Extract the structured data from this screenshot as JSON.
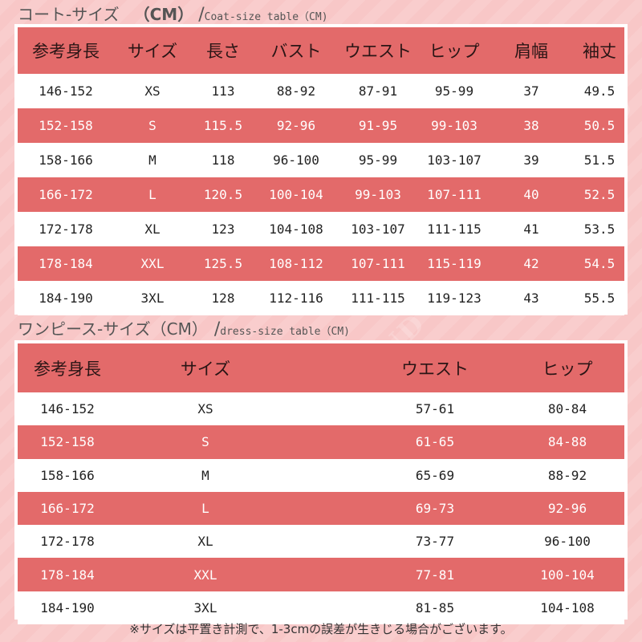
{
  "coat_heading": {
    "jp": "コート-サイズ",
    "cm": "（CM）",
    "slash": "/",
    "en": "Coat-size table（CM)"
  },
  "coat_table": {
    "headers": [
      "参考身長",
      "サイズ",
      "長さ",
      "バスト",
      "ウエスト",
      "ヒップ",
      "肩幅",
      "袖丈"
    ],
    "rows": [
      [
        "146-152",
        "XS",
        "113",
        "88-92",
        "87-91",
        "95-99",
        "37",
        "49.5"
      ],
      [
        "152-158",
        "S",
        "115.5",
        "92-96",
        "91-95",
        "99-103",
        "38",
        "50.5"
      ],
      [
        "158-166",
        "M",
        "118",
        "96-100",
        "95-99",
        "103-107",
        "39",
        "51.5"
      ],
      [
        "166-172",
        "L",
        "120.5",
        "100-104",
        "99-103",
        "107-111",
        "40",
        "52.5"
      ],
      [
        "172-178",
        "XL",
        "123",
        "104-108",
        "103-107",
        "111-115",
        "41",
        "53.5"
      ],
      [
        "178-184",
        "XXL",
        "125.5",
        "108-112",
        "107-111",
        "115-119",
        "42",
        "54.5"
      ],
      [
        "184-190",
        "3XL",
        "128",
        "112-116",
        "111-115",
        "119-123",
        "43",
        "55.5"
      ]
    ]
  },
  "dress_heading": {
    "jp": "ワンピース-サイズ（CM）",
    "slash": "/",
    "en": "dress-size table（CM)"
  },
  "dress_table": {
    "headers": [
      "参考身長",
      "サイズ",
      "ウエスト",
      "ヒップ"
    ],
    "rows": [
      [
        "146-152",
        "XS",
        "57-61",
        "80-84"
      ],
      [
        "152-158",
        "S",
        "61-65",
        "84-88"
      ],
      [
        "158-166",
        "M",
        "65-69",
        "88-92"
      ],
      [
        "166-172",
        "L",
        "69-73",
        "92-96"
      ],
      [
        "172-178",
        "XL",
        "73-77",
        "96-100"
      ],
      [
        "178-184",
        "XXL",
        "77-81",
        "100-104"
      ],
      [
        "184-190",
        "3XL",
        "81-85",
        "104-108"
      ]
    ]
  },
  "watermark": "HAPPYLAND",
  "footnote": "※サイズは平置き計測で、1-3cmの誤差が生きじる場合がございます。",
  "colors": {
    "row_red": "#e36a6a",
    "row_white": "#ffffff",
    "background": "#f8c7c7"
  }
}
